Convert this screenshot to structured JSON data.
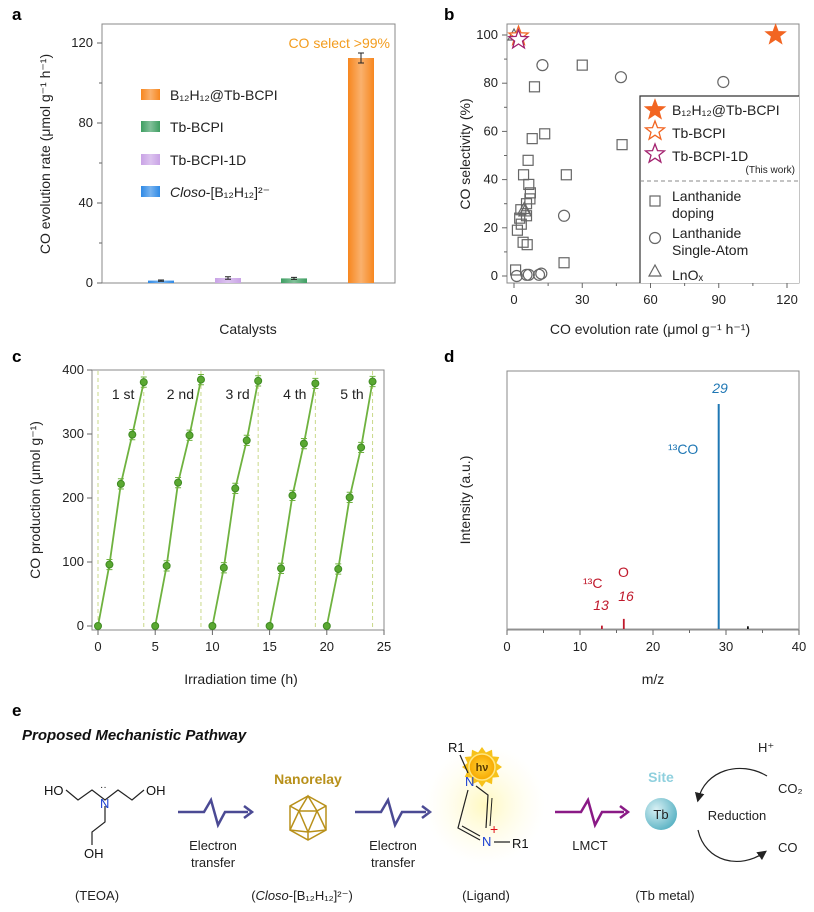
{
  "panel_labels": {
    "a": "a",
    "b": "b",
    "c": "c",
    "d": "d",
    "e": "e"
  },
  "chart_data": [
    {
      "id": "a",
      "type": "bar",
      "xlabel": "Catalysts",
      "ylabel": "CO evolution rate (μmol g⁻¹ h⁻¹)",
      "ylim": [
        0,
        130
      ],
      "yticks": [
        0,
        40,
        80,
        120
      ],
      "categories": [
        "Closo-[B₁₂H₁₂]²⁻",
        "Tb-BCPI-1D",
        "Tb-BCPI",
        "B₁₂H₁₂@Tb-BCPI"
      ],
      "values": [
        1.2,
        2.5,
        2.3,
        112.5
      ],
      "errors": [
        0.3,
        0.6,
        0.5,
        2.5
      ],
      "colors": [
        "#2f8ae6",
        "#c9a3e6",
        "#3e9e62",
        "#f7871f"
      ],
      "annotation": "CO select >99%",
      "annotation_color": "#f39c1e",
      "legend": [
        {
          "label": "B₁₂H₁₂@Tb-BCPI",
          "color": "#f7871f"
        },
        {
          "label": "Tb-BCPI",
          "color": "#3e9e62"
        },
        {
          "label": "Tb-BCPI-1D",
          "color": "#c9a3e6"
        },
        {
          "label_italic": "Closo",
          "label": "-[B₁₂H₁₂]²⁻",
          "color": "#2f8ae6"
        }
      ]
    },
    {
      "id": "b",
      "type": "scatter",
      "xlabel": "CO evolution rate (μmol g⁻¹ h⁻¹)",
      "ylabel": "CO selectivity (%)",
      "xlim": [
        -2,
        125
      ],
      "ylim": [
        -3,
        103
      ],
      "xticks": [
        0,
        30,
        60,
        90,
        120
      ],
      "yticks": [
        0,
        20,
        40,
        60,
        80,
        100
      ],
      "series": [
        {
          "name": "B₁₂H₁₂@Tb-BCPI",
          "marker": "star-filled",
          "color": "#f26522",
          "points": [
            [
              115,
              100
            ]
          ]
        },
        {
          "name": "Tb-BCPI",
          "marker": "star-open",
          "color": "#f26522",
          "points": [
            [
              2,
              99.5
            ]
          ]
        },
        {
          "name": "Tb-BCPI-1D",
          "marker": "star-open",
          "color": "#a3226f",
          "points": [
            [
              2,
              98
            ]
          ]
        },
        {
          "name": "Lanthanide doping",
          "marker": "square",
          "color": "#666666",
          "points": [
            [
              0.7,
              2.5
            ],
            [
              1.5,
              19
            ],
            [
              2.5,
              24
            ],
            [
              3,
              27.5
            ],
            [
              3.2,
              21.5
            ],
            [
              4,
              14
            ],
            [
              4.2,
              42
            ],
            [
              5.5,
              30
            ],
            [
              5.5,
              25
            ],
            [
              5.8,
              13
            ],
            [
              6.2,
              48
            ],
            [
              6.5,
              38
            ],
            [
              7,
              32
            ],
            [
              7.2,
              34.5
            ],
            [
              8,
              57
            ],
            [
              9,
              78.5
            ],
            [
              13.5,
              59
            ],
            [
              30,
              87.5
            ],
            [
              47.5,
              54.5
            ],
            [
              23,
              42
            ],
            [
              22,
              5.5
            ]
          ]
        },
        {
          "name": "Lanthanide Single-Atom",
          "marker": "circle",
          "color": "#666666",
          "points": [
            [
              1.2,
              0
            ],
            [
              5.5,
              0.5
            ],
            [
              6.5,
              0.5
            ],
            [
              11,
              0.5
            ],
            [
              12,
              1
            ],
            [
              12.5,
              87.5
            ],
            [
              22,
              25
            ],
            [
              47,
              82.5
            ],
            [
              92,
              80.5
            ]
          ]
        },
        {
          "name": "LnOₓ",
          "marker": "triangle",
          "color": "#666666",
          "points": [
            [
              0,
              100
            ],
            [
              4.5,
              28
            ],
            [
              4.8,
              27
            ]
          ]
        }
      ],
      "legend": {
        "this_work_note": "(This work)",
        "entries": [
          {
            "lines": [
              "B₁₂H₁₂@Tb-BCPI"
            ]
          },
          {
            "lines": [
              "Tb-BCPI"
            ]
          },
          {
            "lines": [
              "Tb-BCPI-1D"
            ]
          },
          {
            "lines": [
              "Lanthanide",
              "doping"
            ]
          },
          {
            "lines": [
              "Lanthanide",
              "Single-Atom"
            ]
          },
          {
            "lines": [
              "LnOₓ"
            ]
          }
        ],
        "placement": "bottom-right"
      }
    },
    {
      "id": "c",
      "type": "line",
      "xlabel": "Irradiation time (h)",
      "ylabel": "CO production (μmol g⁻¹)",
      "xlim": [
        0,
        25
      ],
      "ylim": [
        0,
        400
      ],
      "xticks": [
        0,
        5,
        10,
        15,
        20,
        25
      ],
      "yticks": [
        0,
        100,
        200,
        300,
        400
      ],
      "color": "#6fb23f",
      "cycle_boundaries": [
        0,
        4,
        9,
        14,
        19,
        24
      ],
      "series": [
        {
          "name": "1 st",
          "x": [
            0,
            1,
            2,
            3,
            4
          ],
          "y": [
            0,
            96,
            222,
            299,
            381
          ]
        },
        {
          "name": "2 nd",
          "x": [
            5,
            6,
            7,
            8,
            9
          ],
          "y": [
            0,
            94,
            224,
            298,
            385
          ]
        },
        {
          "name": "3 rd",
          "x": [
            10,
            11,
            12,
            13,
            14
          ],
          "y": [
            0,
            91,
            215,
            290,
            383
          ]
        },
        {
          "name": "4 th",
          "x": [
            15,
            16,
            17,
            18,
            19
          ],
          "y": [
            0,
            90,
            204,
            285,
            379
          ]
        },
        {
          "name": "5 th",
          "x": [
            20,
            21,
            22,
            23,
            24
          ],
          "y": [
            0,
            89,
            201,
            279,
            382
          ]
        }
      ]
    },
    {
      "id": "d",
      "type": "bar",
      "xlabel": "m/z",
      "ylabel": "Intensity (a.u.)",
      "xlim": [
        0,
        40
      ],
      "ylim": [
        0,
        1.15
      ],
      "xticks": [
        0,
        10,
        20,
        30,
        40
      ],
      "peaks": [
        {
          "x": 13,
          "y": 0.015,
          "color": "#c0192c",
          "label": "13"
        },
        {
          "x": 16,
          "y": 0.045,
          "color": "#c0192c",
          "label": "16"
        },
        {
          "x": 29,
          "y": 1.0,
          "color": "#1f77b4",
          "label": "29"
        },
        {
          "x": 33,
          "y": 0.012,
          "color": "#111111",
          "label": ""
        }
      ],
      "annotations": {
        "co13": "¹³CO",
        "c13": "¹³C",
        "o": "O"
      }
    }
  ],
  "mechanism": {
    "title": "Proposed Mechanistic Pathway",
    "teoa": {
      "ho_left": "HO",
      "oh_right": "OH",
      "oh_bottom": "OH",
      "n": "N",
      "caption": "(TEOA)"
    },
    "step1": {
      "line1": "Electron",
      "line2": "transfer"
    },
    "nanorelay": {
      "title": "Nanorelay",
      "caption_italic": "Closo",
      "caption": "-[B₁₂H₁₂]²⁻)",
      "caption_open": "("
    },
    "step2": {
      "line1": "Electron",
      "line2": "transfer"
    },
    "ligand": {
      "r1_top": "R1",
      "r1_right": "R1",
      "n1": "N",
      "n2": "N",
      "plus": "+",
      "caption": "(Ligand)",
      "sun": "hν"
    },
    "step3": {
      "label": "LMCT"
    },
    "site": {
      "title": "Site",
      "metal": "Tb",
      "caption": "(Tb metal)"
    },
    "cycle": {
      "h_plus": "H⁺",
      "co2": "CO₂",
      "co": "CO",
      "label": "Reduction"
    }
  }
}
